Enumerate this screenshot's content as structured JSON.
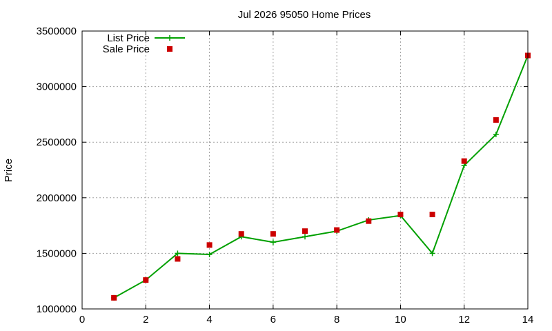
{
  "chart_data": {
    "type": "line",
    "title": "Jul 2026 95050 Home Prices",
    "xlabel": "",
    "ylabel": "Price",
    "xlim": [
      0,
      14
    ],
    "ylim": [
      1000000,
      3500000
    ],
    "x_ticks": [
      0,
      2,
      4,
      6,
      8,
      10,
      12,
      14
    ],
    "y_ticks": [
      1000000,
      1500000,
      2000000,
      2500000,
      3000000,
      3500000
    ],
    "grid": true,
    "legend_position": "top-left",
    "series": [
      {
        "name": "List Price",
        "style": "line-with-plus-markers",
        "color": "#00a000",
        "points": [
          [
            1,
            1100000
          ],
          [
            2,
            1260000
          ],
          [
            3,
            1500000
          ],
          [
            4,
            1490000
          ],
          [
            5,
            1650000
          ],
          [
            6,
            1600000
          ],
          [
            7,
            1650000
          ],
          [
            8,
            1700000
          ],
          [
            9,
            1800000
          ],
          [
            10,
            1840000
          ],
          [
            11,
            1500000
          ],
          [
            12,
            2290000
          ],
          [
            13,
            2570000
          ],
          [
            14,
            3280000
          ]
        ]
      },
      {
        "name": "Sale Price",
        "style": "square-markers",
        "color": "#cc0000",
        "points": [
          [
            1,
            1100000
          ],
          [
            2,
            1260000
          ],
          [
            3,
            1450000
          ],
          [
            4,
            1575000
          ],
          [
            5,
            1675000
          ],
          [
            6,
            1675000
          ],
          [
            7,
            1700000
          ],
          [
            8,
            1710000
          ],
          [
            9,
            1790000
          ],
          [
            10,
            1850000
          ],
          [
            11,
            1850000
          ],
          [
            12,
            2330000
          ],
          [
            13,
            2700000
          ],
          [
            14,
            3280000
          ]
        ]
      }
    ]
  }
}
